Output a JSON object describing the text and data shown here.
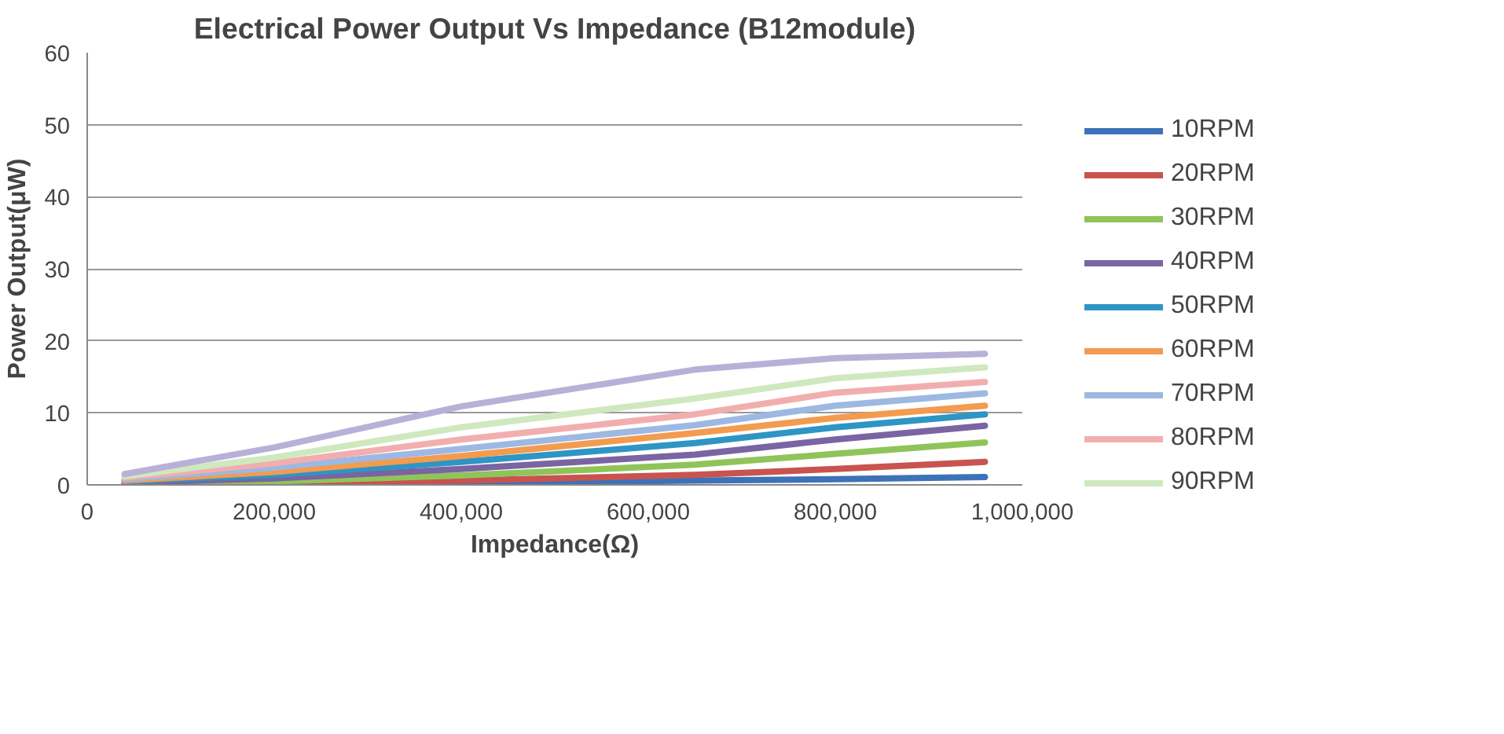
{
  "chart_data": {
    "type": "line",
    "title": "Electrical Power Output Vs Impedance (B12module)",
    "xlabel": "Impedance(Ω)",
    "ylabel": "Power Output(μW)",
    "x": [
      40000,
      200000,
      400000,
      650000,
      800000,
      960000
    ],
    "xlim": [
      0,
      1000000
    ],
    "ylim": [
      0,
      60
    ],
    "xticks": [
      0,
      {
        "value": 200000,
        "label": "200,000"
      },
      {
        "value": 400000,
        "label": "400,000"
      },
      {
        "value": 600000,
        "label": "600,000"
      },
      {
        "value": 800000,
        "label": "800,000"
      },
      {
        "value": 1000000,
        "label": "1,000,000"
      }
    ],
    "yticks": [
      0,
      10,
      20,
      30,
      40,
      50,
      60
    ],
    "grid": "y",
    "legend": "right",
    "marker": "none",
    "line_style": "solid",
    "series": [
      {
        "name": "10RPM",
        "color": "#3d72b8",
        "values": [
          0,
          0.1,
          0.3,
          0.6,
          0.8,
          1.1
        ]
      },
      {
        "name": "20RPM",
        "color": "#c9534f",
        "values": [
          0.1,
          0.2,
          0.6,
          1.4,
          2.2,
          3.2
        ]
      },
      {
        "name": "30RPM",
        "color": "#8fc45a",
        "values": [
          0.2,
          0.5,
          1.3,
          2.8,
          4.3,
          5.9
        ]
      },
      {
        "name": "40RPM",
        "color": "#7a64a2",
        "values": [
          0.3,
          0.9,
          2.2,
          4.2,
          6.3,
          8.2
        ]
      },
      {
        "name": "50RPM",
        "color": "#2e95c4",
        "values": [
          0.5,
          1.4,
          3.2,
          5.8,
          8.0,
          9.8
        ]
      },
      {
        "name": "60RPM",
        "color": "#f39b4f",
        "values": [
          0.6,
          1.8,
          4.0,
          7.2,
          9.3,
          11.0
        ]
      },
      {
        "name": "70RPM",
        "color": "#9db8e2",
        "values": [
          0.8,
          2.4,
          5.0,
          8.3,
          11.0,
          12.7
        ]
      },
      {
        "name": "80RPM",
        "color": "#f2aeae",
        "values": [
          1.0,
          3.0,
          6.3,
          9.8,
          12.8,
          14.3
        ]
      },
      {
        "name": "90RPM",
        "color": "#cfe9bf",
        "values": [
          1.2,
          3.8,
          8.0,
          12.0,
          14.8,
          16.3
        ]
      },
      {
        "color": "#b9b0d8",
        "values": [
          1.5,
          5.2,
          10.9,
          16.0,
          17.6,
          18.2
        ]
      }
    ]
  }
}
